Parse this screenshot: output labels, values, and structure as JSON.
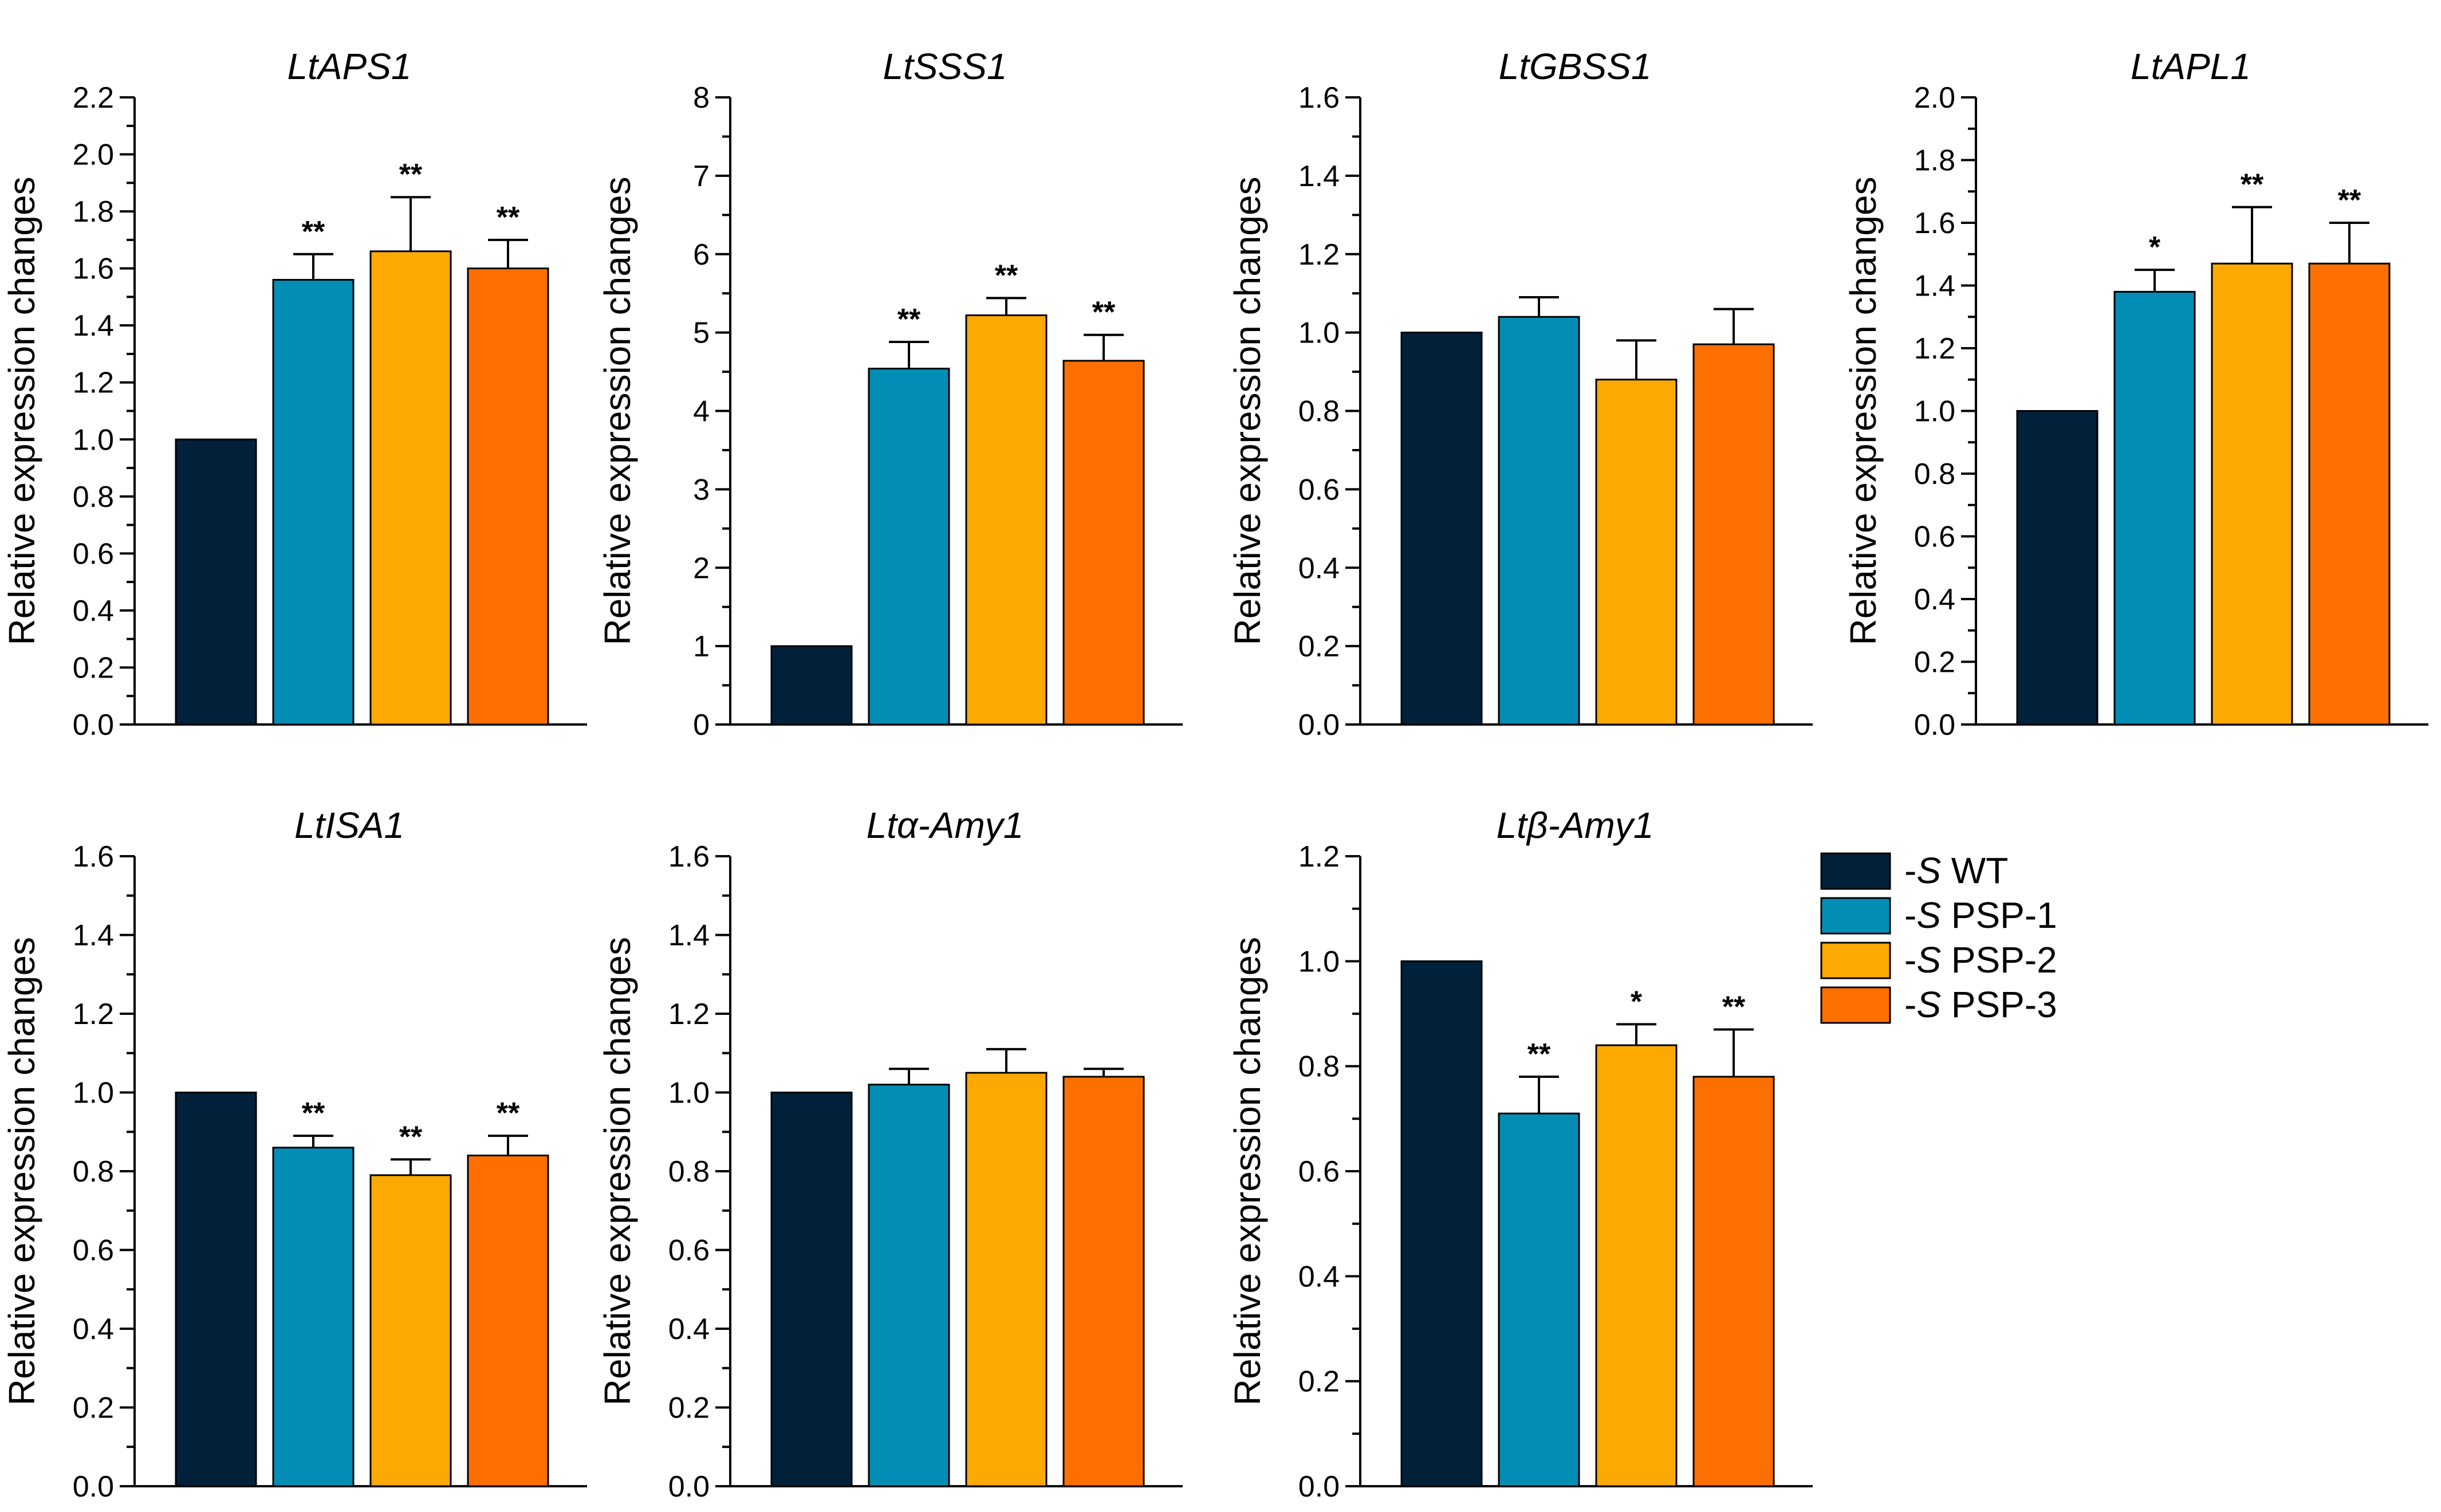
{
  "legend": [
    {
      "key": "wt",
      "prefix": "-",
      "italic": "S",
      "suffix": " WT",
      "color": "#01213b"
    },
    {
      "key": "psp1",
      "prefix": "-",
      "italic": "S",
      "suffix": " PSP-1",
      "color": "#038db5"
    },
    {
      "key": "psp2",
      "prefix": "-",
      "italic": "S",
      "suffix": " PSP-2",
      "color": "#fca904"
    },
    {
      "key": "psp3",
      "prefix": "-",
      "italic": "S",
      "suffix": " PSP-3",
      "color": "#fd6f01"
    }
  ],
  "chart_data": [
    {
      "type": "bar",
      "title": "LtAPS1",
      "ylabel": "Relative expression changes",
      "categories": [
        "-S WT",
        "-S PSP-1",
        "-S PSP-2",
        "-S PSP-3"
      ],
      "values": [
        1.0,
        1.56,
        1.66,
        1.6
      ],
      "errors": [
        0,
        0.09,
        0.19,
        0.1
      ],
      "significance": [
        "",
        "**",
        "**",
        "**"
      ],
      "ylim": [
        0,
        2.2
      ],
      "ytick_labels": [
        "0.0",
        "0.2",
        "0.4",
        "0.6",
        "0.8",
        "1.0",
        "1.2",
        "1.4",
        "1.6",
        "1.8",
        "2.0",
        "2.2"
      ]
    },
    {
      "type": "bar",
      "title": "LtSSS1",
      "ylabel": "Relative expression changes",
      "categories": [
        "-S WT",
        "-S PSP-1",
        "-S PSP-2",
        "-S PSP-3"
      ],
      "values": [
        1.0,
        4.54,
        5.22,
        4.64
      ],
      "errors": [
        0,
        0.34,
        0.22,
        0.33
      ],
      "significance": [
        "",
        "**",
        "**",
        "**"
      ],
      "ylim": [
        0,
        8
      ],
      "ytick_labels": [
        "0",
        "1",
        "2",
        "3",
        "4",
        "5",
        "6",
        "7",
        "8"
      ]
    },
    {
      "type": "bar",
      "title": "LtGBSS1",
      "ylabel": "Relative expression changes",
      "categories": [
        "-S WT",
        "-S PSP-1",
        "-S PSP-2",
        "-S PSP-3"
      ],
      "values": [
        1.0,
        1.04,
        0.88,
        0.97
      ],
      "errors": [
        0,
        0.05,
        0.1,
        0.09
      ],
      "significance": [
        "",
        "",
        "",
        ""
      ],
      "ylim": [
        0,
        1.6
      ],
      "ytick_labels": [
        "0.0",
        "0.2",
        "0.4",
        "0.6",
        "0.8",
        "1.0",
        "1.2",
        "1.4",
        "1.6"
      ]
    },
    {
      "type": "bar",
      "title": "LtAPL1",
      "ylabel": "Relative expression changes",
      "categories": [
        "-S WT",
        "-S PSP-1",
        "-S PSP-2",
        "-S PSP-3"
      ],
      "values": [
        1.0,
        1.38,
        1.47,
        1.47
      ],
      "errors": [
        0,
        0.07,
        0.18,
        0.13
      ],
      "significance": [
        "",
        "*",
        "**",
        "**"
      ],
      "ylim": [
        0,
        2.0
      ],
      "ytick_labels": [
        "0.0",
        "0.2",
        "0.4",
        "0.6",
        "0.8",
        "1.0",
        "1.2",
        "1.4",
        "1.6",
        "1.8",
        "2.0"
      ]
    },
    {
      "type": "bar",
      "title": "LtISA1",
      "ylabel": "Relative expression changes",
      "categories": [
        "-S WT",
        "-S PSP-1",
        "-S PSP-2",
        "-S PSP-3"
      ],
      "values": [
        1.0,
        0.86,
        0.79,
        0.84
      ],
      "errors": [
        0,
        0.03,
        0.04,
        0.05
      ],
      "significance": [
        "",
        "**",
        "**",
        "**"
      ],
      "ylim": [
        0,
        1.6
      ],
      "ytick_labels": [
        "0.0",
        "0.2",
        "0.4",
        "0.6",
        "0.8",
        "1.0",
        "1.2",
        "1.4",
        "1.6"
      ]
    },
    {
      "type": "bar",
      "title": "Ltα-Amy1",
      "ylabel": "Relative expression changes",
      "categories": [
        "-S WT",
        "-S PSP-1",
        "-S PSP-2",
        "-S PSP-3"
      ],
      "values": [
        1.0,
        1.02,
        1.05,
        1.04
      ],
      "errors": [
        0,
        0.04,
        0.06,
        0.02
      ],
      "significance": [
        "",
        "",
        "",
        ""
      ],
      "ylim": [
        0,
        1.6
      ],
      "ytick_labels": [
        "0.0",
        "0.2",
        "0.4",
        "0.6",
        "0.8",
        "1.0",
        "1.2",
        "1.4",
        "1.6"
      ]
    },
    {
      "type": "bar",
      "title": "Ltβ-Amy1",
      "ylabel": "Relative expression changes",
      "categories": [
        "-S WT",
        "-S PSP-1",
        "-S PSP-2",
        "-S PSP-3"
      ],
      "values": [
        1.0,
        0.71,
        0.84,
        0.78
      ],
      "errors": [
        0,
        0.07,
        0.04,
        0.09
      ],
      "significance": [
        "",
        "**",
        "*",
        "**"
      ],
      "ylim": [
        0,
        1.2
      ],
      "ytick_labels": [
        "0.0",
        "0.2",
        "0.4",
        "0.6",
        "0.8",
        "1.0",
        "1.2"
      ]
    }
  ]
}
